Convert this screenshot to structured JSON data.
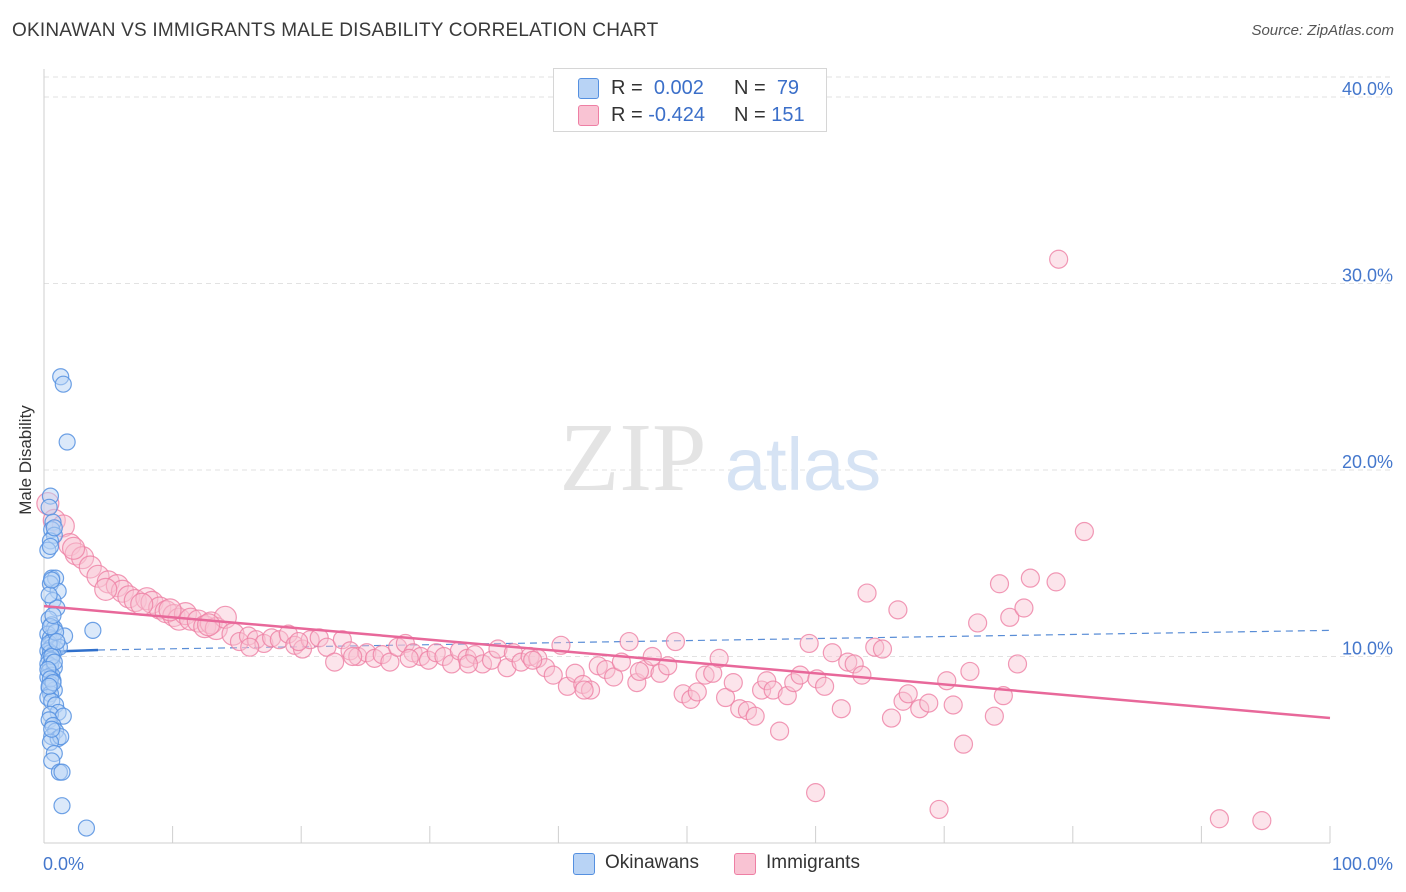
{
  "title": "OKINAWAN VS IMMIGRANTS MALE DISABILITY CORRELATION CHART",
  "source": "Source: ZipAtlas.com",
  "watermark": {
    "zip": "ZIP",
    "atlas": "atlas"
  },
  "legend_top": {
    "rows": [
      {
        "r_label": "R =",
        "r_value": "0.002",
        "n_label": "N =",
        "n_value": "79"
      },
      {
        "r_label": "R =",
        "r_value": "-0.424",
        "n_label": "N =",
        "n_value": "151"
      }
    ]
  },
  "colors": {
    "okinawan_fill": "#b8d3f5",
    "okinawan_stroke": "#5590e0",
    "okinawan_line": "#3070cc",
    "immigrant_fill": "#f9c3d3",
    "immigrant_stroke": "#ee7fa4",
    "immigrant_line": "#e8689a",
    "tick_label": "#4477cc",
    "grid": "#e2e2e2"
  },
  "chart_data": {
    "type": "scatter",
    "title": "OKINAWAN VS IMMIGRANTS MALE DISABILITY CORRELATION CHART",
    "xlabel": "",
    "ylabel": "Male Disability",
    "xlim": [
      0,
      100
    ],
    "ylim": [
      0,
      41.5
    ],
    "y_ticks": [
      10,
      20,
      30,
      40
    ],
    "y_tick_labels": [
      "10.0%",
      "20.0%",
      "30.0%",
      "40.0%"
    ],
    "x_tick_labels": [
      "0.0%",
      "100.0%"
    ],
    "legend": [
      "Okinawans",
      "Immigrants"
    ],
    "series": [
      {
        "name": "Okinawans",
        "r": 0.002,
        "n": 79,
        "trend": {
          "x": [
            0,
            4.2
          ],
          "y": [
            10.25,
            10.35
          ]
        },
        "trend_extended": {
          "x": [
            4.2,
            100
          ],
          "y": [
            10.35,
            11.4
          ]
        },
        "points": [
          [
            1.3,
            25.0
          ],
          [
            1.5,
            24.6
          ],
          [
            1.8,
            21.5
          ],
          [
            0.5,
            18.6
          ],
          [
            0.4,
            18.0
          ],
          [
            0.7,
            17.2
          ],
          [
            0.6,
            16.8
          ],
          [
            0.8,
            16.5
          ],
          [
            0.5,
            16.2
          ],
          [
            0.3,
            15.7
          ],
          [
            0.6,
            14.2
          ],
          [
            0.9,
            14.2
          ],
          [
            0.5,
            13.9
          ],
          [
            1.1,
            13.5
          ],
          [
            0.7,
            13.0
          ],
          [
            1.0,
            12.6
          ],
          [
            0.4,
            12.0
          ],
          [
            0.6,
            11.7
          ],
          [
            0.8,
            11.5
          ],
          [
            3.8,
            11.4
          ],
          [
            0.3,
            11.2
          ],
          [
            0.5,
            11.0
          ],
          [
            1.6,
            11.1
          ],
          [
            0.7,
            10.9
          ],
          [
            0.4,
            10.6
          ],
          [
            0.6,
            10.5
          ],
          [
            0.9,
            10.4
          ],
          [
            1.2,
            10.5
          ],
          [
            0.3,
            10.3
          ],
          [
            0.5,
            10.2
          ],
          [
            0.7,
            10.1
          ],
          [
            0.4,
            9.9
          ],
          [
            0.6,
            9.8
          ],
          [
            0.3,
            9.6
          ],
          [
            0.5,
            9.5
          ],
          [
            0.8,
            9.4
          ],
          [
            0.4,
            9.2
          ],
          [
            0.6,
            9.0
          ],
          [
            0.3,
            8.9
          ],
          [
            0.7,
            8.7
          ],
          [
            0.5,
            8.5
          ],
          [
            0.4,
            8.3
          ],
          [
            0.8,
            8.2
          ],
          [
            0.5,
            8.0
          ],
          [
            0.3,
            7.8
          ],
          [
            0.6,
            7.6
          ],
          [
            0.9,
            7.4
          ],
          [
            1.1,
            7.0
          ],
          [
            0.5,
            6.9
          ],
          [
            1.5,
            6.8
          ],
          [
            0.4,
            6.6
          ],
          [
            0.7,
            6.3
          ],
          [
            0.9,
            6.0
          ],
          [
            0.6,
            5.7
          ],
          [
            1.1,
            5.6
          ],
          [
            1.3,
            5.7
          ],
          [
            0.5,
            5.4
          ],
          [
            0.8,
            4.8
          ],
          [
            0.6,
            4.4
          ],
          [
            1.2,
            3.8
          ],
          [
            1.4,
            3.8
          ],
          [
            1.4,
            2.0
          ],
          [
            3.3,
            0.8
          ],
          [
            0.4,
            10.7
          ],
          [
            0.6,
            10.0
          ],
          [
            0.8,
            9.7
          ],
          [
            0.3,
            9.3
          ],
          [
            0.5,
            8.8
          ],
          [
            0.7,
            8.6
          ],
          [
            0.4,
            8.4
          ],
          [
            0.9,
            11.3
          ],
          [
            0.5,
            11.6
          ],
          [
            0.7,
            12.2
          ],
          [
            0.4,
            13.3
          ],
          [
            0.6,
            14.1
          ],
          [
            0.8,
            16.9
          ],
          [
            0.5,
            15.9
          ],
          [
            1.0,
            10.8
          ],
          [
            0.6,
            6.1
          ]
        ]
      },
      {
        "name": "Immigrants",
        "r": -0.424,
        "n": 151,
        "trend": {
          "x": [
            0,
            100
          ],
          "y": [
            12.7,
            6.7
          ]
        },
        "points": [
          [
            0.3,
            18.2
          ],
          [
            0.8,
            17.3
          ],
          [
            1.5,
            17.0
          ],
          [
            2.0,
            16.0
          ],
          [
            2.5,
            15.5
          ],
          [
            3.0,
            15.3
          ],
          [
            3.6,
            14.8
          ],
          [
            4.2,
            14.3
          ],
          [
            5.0,
            14.0
          ],
          [
            5.7,
            13.8
          ],
          [
            6.1,
            13.5
          ],
          [
            6.6,
            13.2
          ],
          [
            7.1,
            13.0
          ],
          [
            8.0,
            13.1
          ],
          [
            8.4,
            12.9
          ],
          [
            9.0,
            12.6
          ],
          [
            9.5,
            12.4
          ],
          [
            10.1,
            12.2
          ],
          [
            10.5,
            12.0
          ],
          [
            11.0,
            12.3
          ],
          [
            11.4,
            12.0
          ],
          [
            12.0,
            11.9
          ],
          [
            12.5,
            11.6
          ],
          [
            13.0,
            11.8
          ],
          [
            13.4,
            11.5
          ],
          [
            14.1,
            12.1
          ],
          [
            14.7,
            11.2
          ],
          [
            15.2,
            10.8
          ],
          [
            15.9,
            11.1
          ],
          [
            16.5,
            10.9
          ],
          [
            17.1,
            10.7
          ],
          [
            17.7,
            11.0
          ],
          [
            18.3,
            10.9
          ],
          [
            19.0,
            11.2
          ],
          [
            19.5,
            10.6
          ],
          [
            20.1,
            10.4
          ],
          [
            20.7,
            10.9
          ],
          [
            21.4,
            11.0
          ],
          [
            22.0,
            10.5
          ],
          [
            22.6,
            9.7
          ],
          [
            23.2,
            10.9
          ],
          [
            23.8,
            10.3
          ],
          [
            24.4,
            10.0
          ],
          [
            25.1,
            10.2
          ],
          [
            25.7,
            9.9
          ],
          [
            26.3,
            10.1
          ],
          [
            26.9,
            9.7
          ],
          [
            27.5,
            10.5
          ],
          [
            28.1,
            10.7
          ],
          [
            28.7,
            10.2
          ],
          [
            29.3,
            10.0
          ],
          [
            29.9,
            9.8
          ],
          [
            30.5,
            10.2
          ],
          [
            31.1,
            10.0
          ],
          [
            31.7,
            9.6
          ],
          [
            32.3,
            10.3
          ],
          [
            32.9,
            9.9
          ],
          [
            33.5,
            10.1
          ],
          [
            34.1,
            9.6
          ],
          [
            34.8,
            9.8
          ],
          [
            35.3,
            10.4
          ],
          [
            36.0,
            9.4
          ],
          [
            36.5,
            10.2
          ],
          [
            37.1,
            9.7
          ],
          [
            37.8,
            10.0
          ],
          [
            38.4,
            9.9
          ],
          [
            39.0,
            9.4
          ],
          [
            39.6,
            9.0
          ],
          [
            40.2,
            10.6
          ],
          [
            40.7,
            8.4
          ],
          [
            41.3,
            9.1
          ],
          [
            41.9,
            8.5
          ],
          [
            42.5,
            8.2
          ],
          [
            43.1,
            9.5
          ],
          [
            43.7,
            9.3
          ],
          [
            44.3,
            8.9
          ],
          [
            44.9,
            9.7
          ],
          [
            45.5,
            10.8
          ],
          [
            46.1,
            8.6
          ],
          [
            46.7,
            9.3
          ],
          [
            47.3,
            10.0
          ],
          [
            47.9,
            9.1
          ],
          [
            48.5,
            9.5
          ],
          [
            49.1,
            10.8
          ],
          [
            49.7,
            8.0
          ],
          [
            50.3,
            7.7
          ],
          [
            50.8,
            8.1
          ],
          [
            51.4,
            9.0
          ],
          [
            52.0,
            9.1
          ],
          [
            52.5,
            9.9
          ],
          [
            53.0,
            7.8
          ],
          [
            53.6,
            8.6
          ],
          [
            54.1,
            7.2
          ],
          [
            54.7,
            7.1
          ],
          [
            55.3,
            6.8
          ],
          [
            55.8,
            8.2
          ],
          [
            56.2,
            8.7
          ],
          [
            56.7,
            8.2
          ],
          [
            57.2,
            6.0
          ],
          [
            57.8,
            7.9
          ],
          [
            58.3,
            8.6
          ],
          [
            58.8,
            9.0
          ],
          [
            59.5,
            10.7
          ],
          [
            60.1,
            8.8
          ],
          [
            60.7,
            8.4
          ],
          [
            61.3,
            10.2
          ],
          [
            62.0,
            7.2
          ],
          [
            62.5,
            9.7
          ],
          [
            63.0,
            9.6
          ],
          [
            63.6,
            9.0
          ],
          [
            64.0,
            13.4
          ],
          [
            64.6,
            10.5
          ],
          [
            65.2,
            10.4
          ],
          [
            65.9,
            6.7
          ],
          [
            66.4,
            12.5
          ],
          [
            66.8,
            7.6
          ],
          [
            67.2,
            8.0
          ],
          [
            68.1,
            7.2
          ],
          [
            68.8,
            7.5
          ],
          [
            70.2,
            8.7
          ],
          [
            70.7,
            7.4
          ],
          [
            71.5,
            5.3
          ],
          [
            72.0,
            9.2
          ],
          [
            72.6,
            11.8
          ],
          [
            73.9,
            6.8
          ],
          [
            74.3,
            13.9
          ],
          [
            74.6,
            7.9
          ],
          [
            75.1,
            12.1
          ],
          [
            75.7,
            9.6
          ],
          [
            76.2,
            12.6
          ],
          [
            76.7,
            14.2
          ],
          [
            78.7,
            14.0
          ],
          [
            78.9,
            31.3
          ],
          [
            80.9,
            16.7
          ],
          [
            60.0,
            2.7
          ],
          [
            69.6,
            1.8
          ],
          [
            91.4,
            1.3
          ],
          [
            94.7,
            1.2
          ],
          [
            2.3,
            15.8
          ],
          [
            4.8,
            13.6
          ],
          [
            7.6,
            12.8
          ],
          [
            9.8,
            12.5
          ],
          [
            12.8,
            11.7
          ],
          [
            16.0,
            10.5
          ],
          [
            19.8,
            10.8
          ],
          [
            24.0,
            10.0
          ],
          [
            28.4,
            9.9
          ],
          [
            33.0,
            9.6
          ],
          [
            38.0,
            9.8
          ],
          [
            42.0,
            8.2
          ],
          [
            46.3,
            9.2
          ]
        ]
      }
    ]
  },
  "legend_bottom": {
    "okinawans": "Okinawans",
    "immigrants": "Immigrants"
  }
}
